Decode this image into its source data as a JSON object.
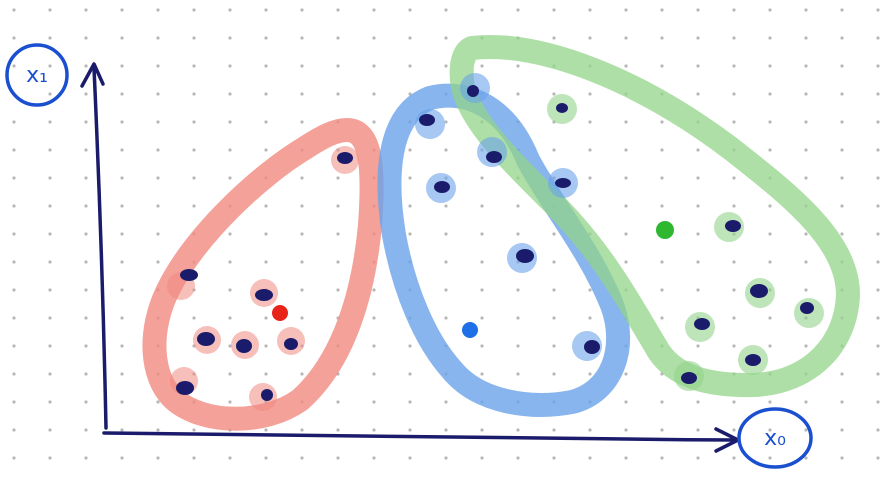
{
  "diagram": {
    "type": "k-means clustering sketch",
    "axes": {
      "y_label": "x₁",
      "x_label": "x₀"
    },
    "colors": {
      "ink": "#1b1b6b",
      "label_ring": "#1a4fd0",
      "grid_dot": "#b8b8b8",
      "cluster_red": "#f08a80",
      "cluster_blue": "#6aa3ea",
      "cluster_green": "#93d48a"
    },
    "clusters": [
      {
        "name": "red",
        "centroid_color": "#e8241a",
        "point_count": 9
      },
      {
        "name": "blue",
        "centroid_color": "#1f6fe6",
        "point_count": 7
      },
      {
        "name": "green",
        "centroid_color": "#2fb82f",
        "point_count": 10
      }
    ]
  }
}
